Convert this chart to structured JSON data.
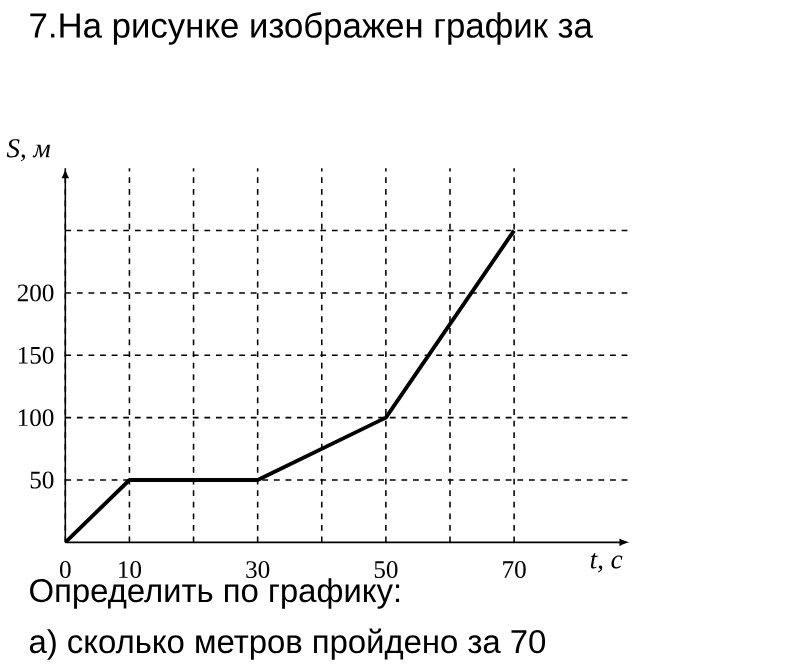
{
  "chart_data": {
    "type": "line",
    "title": "7.На рисунке изображен график за",
    "xlabel": "t, c",
    "ylabel": "S, м",
    "annotations": [
      "Определить по графику:",
      "а) сколько метров пройдено за 70"
    ],
    "x": [
      0,
      10,
      30,
      50,
      70
    ],
    "values": [
      0,
      50,
      50,
      100,
      250
    ],
    "color": "#000000",
    "xlim": [
      0,
      88
    ],
    "ylim": [
      0,
      300
    ],
    "xticks": [
      0,
      10,
      {
        "value": 20,
        "label": null
      },
      30,
      {
        "value": 40,
        "label": null
      },
      50,
      {
        "value": 60,
        "label": null
      },
      70
    ],
    "yticks": [
      50,
      100,
      150,
      200,
      {
        "value": 250,
        "label": null
      }
    ],
    "grid": true
  }
}
